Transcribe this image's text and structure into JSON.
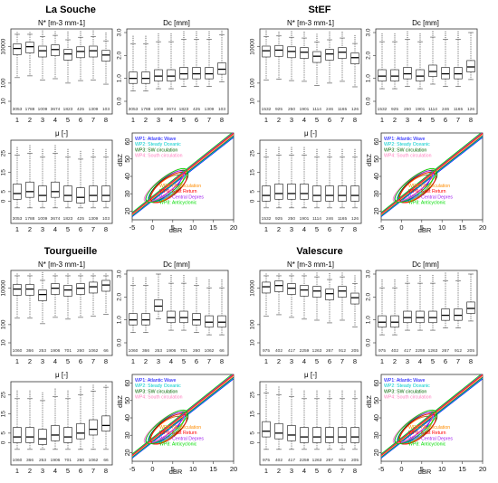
{
  "chart_data": {
    "type": "box",
    "box_groups": [
      "1",
      "2",
      "3",
      "4",
      "5",
      "6",
      "7",
      "8"
    ],
    "legend_entries": [
      {
        "label": "WP1: Atlantic Wave",
        "color": "#0000ff"
      },
      {
        "label": "WP2: Steady Oceanic",
        "color": "#00cccc"
      },
      {
        "label": "WP3: SW circulation",
        "color": "#006400"
      },
      {
        "label": "WP4: South circulation",
        "color": "#ff80c0"
      },
      {
        "label": "WP5: NE circulation",
        "color": "#ff8c00"
      },
      {
        "label": "WP6: East Return",
        "color": "#ff0000"
      },
      {
        "label": "WP7: Central Depres",
        "color": "#a020f0"
      },
      {
        "label": "WP8: Anticyclonic",
        "color": "#00dd00"
      }
    ],
    "panel_titles": {
      "n": "N* [m-3 mm-1]",
      "dc": "Dc [mm]",
      "mu": "μ [-]"
    },
    "scatter_axes": {
      "xlabel": "dBR",
      "ylabel": "dBZ",
      "x_ticks": [
        "-5",
        "0",
        "5",
        "10",
        "15",
        "20"
      ],
      "y_ticks": [
        "20",
        "30",
        "40",
        "50",
        "60"
      ]
    },
    "stations": [
      {
        "name": "La Souche",
        "counts": [
          "3053",
          "1788",
          "1009",
          "3674",
          "1823",
          "425",
          "1309",
          "103"
        ],
        "n": {
          "ylim": [
            10,
            60000
          ],
          "ticks": [
            "10",
            "100",
            "10000"
          ],
          "medians": [
            8000,
            10000,
            6000,
            7000,
            4000,
            5500,
            6000,
            3500
          ]
        },
        "dc": {
          "ylim": [
            0,
            3
          ],
          "ticks": [
            "0.0",
            "1.0",
            "2.0",
            "3.0"
          ],
          "medians": [
            1.0,
            1.0,
            1.1,
            1.1,
            1.2,
            1.2,
            1.2,
            1.4
          ]
        },
        "mu": {
          "ylim": [
            -5,
            30
          ],
          "ticks": [
            "0",
            "5",
            "15",
            "25"
          ],
          "medians": [
            4,
            5,
            3,
            5,
            3,
            2,
            3,
            3
          ]
        }
      },
      {
        "name": "StEF",
        "counts": [
          "1532",
          "925",
          "250",
          "1901",
          "1114",
          "246",
          "1165",
          "126"
        ],
        "n": {
          "ylim": [
            10,
            60000
          ],
          "ticks": [
            "10",
            "100",
            "10000"
          ],
          "medians": [
            6000,
            6500,
            5500,
            5000,
            3000,
            4000,
            5000,
            2500
          ]
        },
        "dc": {
          "ylim": [
            0,
            3
          ],
          "ticks": [
            "0.0",
            "1.0",
            "2.0",
            "3.0"
          ],
          "medians": [
            1.1,
            1.1,
            1.2,
            1.1,
            1.3,
            1.2,
            1.2,
            1.5
          ]
        },
        "mu": {
          "ylim": [
            -5,
            30
          ],
          "ticks": [
            "0",
            "5",
            "15",
            "25"
          ],
          "medians": [
            3,
            4,
            4,
            4,
            3,
            3,
            3,
            3
          ]
        }
      },
      {
        "name": "Tourgueille",
        "counts": [
          "1060",
          "366",
          "253",
          "1906",
          "701",
          "260",
          "1062",
          "66"
        ],
        "n": {
          "ylim": [
            10,
            60000
          ],
          "ticks": [
            "10",
            "100",
            "10000"
          ],
          "medians": [
            9000,
            9000,
            4500,
            10000,
            8000,
            10000,
            12000,
            15000
          ]
        },
        "dc": {
          "ylim": [
            0,
            3
          ],
          "ticks": [
            "0.0",
            "1.0",
            "2.0",
            "3.0"
          ],
          "medians": [
            1.0,
            1.0,
            1.6,
            1.1,
            1.1,
            1.0,
            0.9,
            0.9
          ]
        },
        "mu": {
          "ylim": [
            -5,
            30
          ],
          "ticks": [
            "0",
            "5",
            "15",
            "25"
          ],
          "medians": [
            3,
            3,
            2,
            4,
            3,
            5,
            7,
            9
          ]
        }
      },
      {
        "name": "Valescure",
        "counts": [
          "975",
          "402",
          "417",
          "2259",
          "1263",
          "267",
          "912",
          "205"
        ],
        "n": {
          "ylim": [
            10,
            60000
          ],
          "ticks": [
            "10",
            "100",
            "10000"
          ],
          "medians": [
            12000,
            14000,
            10000,
            8000,
            7000,
            5000,
            7000,
            3000
          ]
        },
        "dc": {
          "ylim": [
            0,
            3
          ],
          "ticks": [
            "0.0",
            "1.0",
            "2.0",
            "3.0"
          ],
          "medians": [
            0.9,
            0.9,
            1.1,
            1.1,
            1.1,
            1.2,
            1.2,
            1.5
          ]
        },
        "mu": {
          "ylim": [
            -5,
            30
          ],
          "ticks": [
            "0",
            "5",
            "15",
            "25"
          ],
          "medians": [
            6,
            5,
            4,
            3,
            3,
            3,
            3,
            3
          ]
        }
      }
    ]
  }
}
